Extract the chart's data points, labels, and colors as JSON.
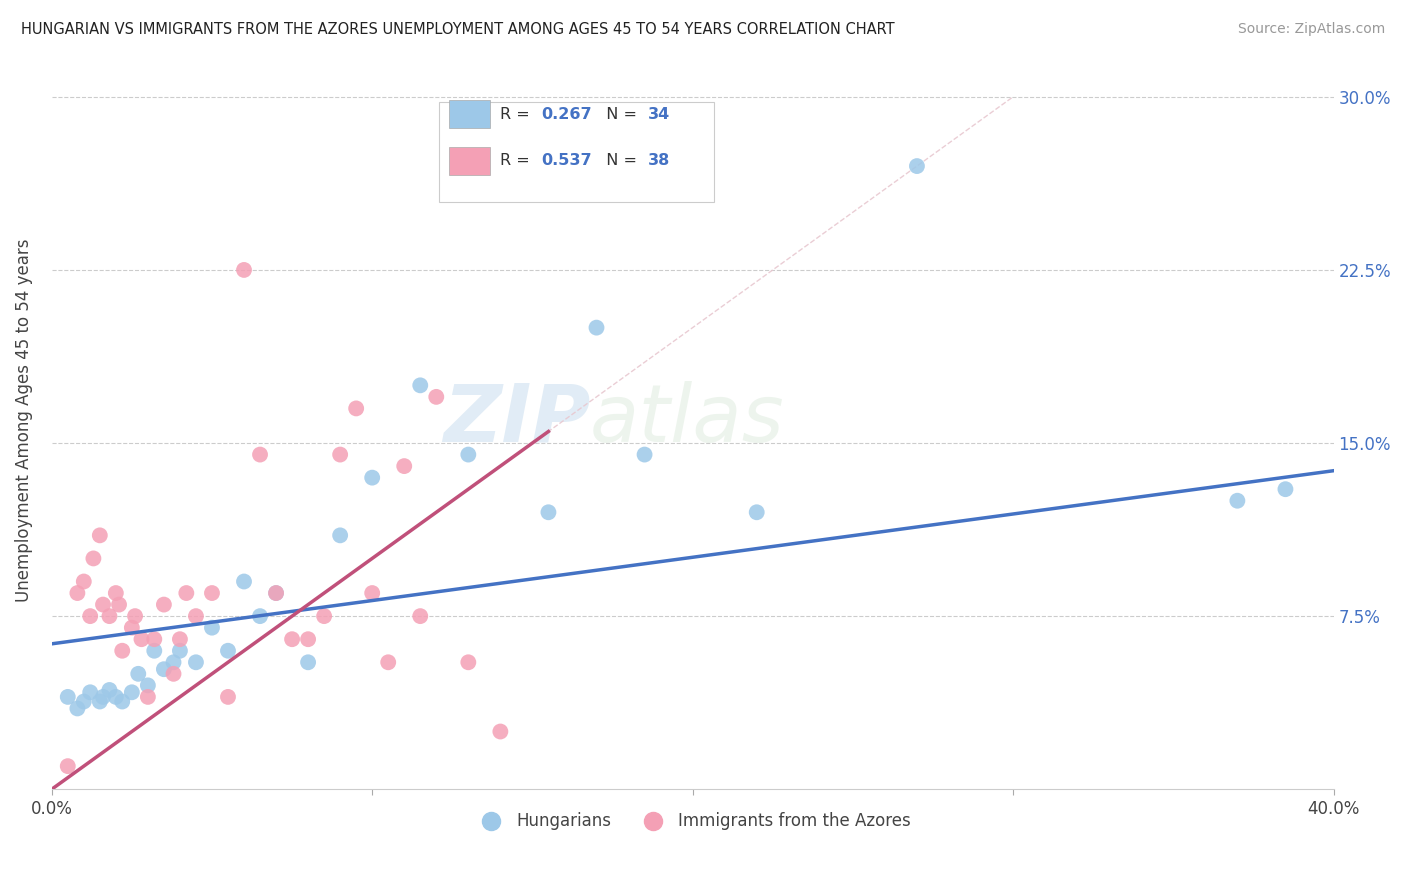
{
  "title": "HUNGARIAN VS IMMIGRANTS FROM THE AZORES UNEMPLOYMENT AMONG AGES 45 TO 54 YEARS CORRELATION CHART",
  "source": "Source: ZipAtlas.com",
  "ylabel": "Unemployment Among Ages 45 to 54 years",
  "xlim": [
    0.0,
    0.4
  ],
  "ylim": [
    0.0,
    0.32
  ],
  "yticks": [
    0.0,
    0.075,
    0.15,
    0.225,
    0.3
  ],
  "ytick_labels": [
    "",
    "7.5%",
    "15.0%",
    "22.5%",
    "30.0%"
  ],
  "xticks": [
    0.0,
    0.1,
    0.2,
    0.3,
    0.4
  ],
  "xtick_labels": [
    "0.0%",
    "",
    "",
    "",
    "40.0%"
  ],
  "watermark_zip": "ZIP",
  "watermark_atlas": "atlas",
  "legend_R1": "0.267",
  "legend_N1": "34",
  "legend_R2": "0.537",
  "legend_N2": "38",
  "color_hungarian": "#9dc8e8",
  "color_azores": "#f4a0b5",
  "color_line_hungarian": "#4472c4",
  "color_line_azores": "#c0507a",
  "color_diagonal": "#e8c8d0",
  "color_tick_right": "#4472c4",
  "hungarian_x": [
    0.005,
    0.008,
    0.01,
    0.012,
    0.015,
    0.016,
    0.018,
    0.02,
    0.022,
    0.025,
    0.027,
    0.03,
    0.032,
    0.035,
    0.038,
    0.04,
    0.045,
    0.05,
    0.055,
    0.06,
    0.065,
    0.07,
    0.08,
    0.09,
    0.1,
    0.115,
    0.13,
    0.155,
    0.17,
    0.185,
    0.22,
    0.27,
    0.37,
    0.385
  ],
  "hungarian_y": [
    0.04,
    0.035,
    0.038,
    0.042,
    0.038,
    0.04,
    0.043,
    0.04,
    0.038,
    0.042,
    0.05,
    0.045,
    0.06,
    0.052,
    0.055,
    0.06,
    0.055,
    0.07,
    0.06,
    0.09,
    0.075,
    0.085,
    0.055,
    0.11,
    0.135,
    0.175,
    0.145,
    0.12,
    0.2,
    0.145,
    0.12,
    0.27,
    0.125,
    0.13
  ],
  "azores_x": [
    0.005,
    0.008,
    0.01,
    0.012,
    0.013,
    0.015,
    0.016,
    0.018,
    0.02,
    0.021,
    0.022,
    0.025,
    0.026,
    0.028,
    0.03,
    0.032,
    0.035,
    0.038,
    0.04,
    0.042,
    0.045,
    0.05,
    0.055,
    0.06,
    0.065,
    0.07,
    0.075,
    0.08,
    0.085,
    0.09,
    0.095,
    0.1,
    0.105,
    0.11,
    0.115,
    0.12,
    0.13,
    0.14
  ],
  "azores_y": [
    0.01,
    0.085,
    0.09,
    0.075,
    0.1,
    0.11,
    0.08,
    0.075,
    0.085,
    0.08,
    0.06,
    0.07,
    0.075,
    0.065,
    0.04,
    0.065,
    0.08,
    0.05,
    0.065,
    0.085,
    0.075,
    0.085,
    0.04,
    0.225,
    0.145,
    0.085,
    0.065,
    0.065,
    0.075,
    0.145,
    0.165,
    0.085,
    0.055,
    0.14,
    0.075,
    0.17,
    0.055,
    0.025
  ],
  "line_h_x0": 0.0,
  "line_h_x1": 0.4,
  "line_h_y0": 0.063,
  "line_h_y1": 0.138,
  "line_az_x0": 0.0,
  "line_az_x1": 0.155,
  "line_az_y0": 0.0,
  "line_az_y1": 0.155
}
